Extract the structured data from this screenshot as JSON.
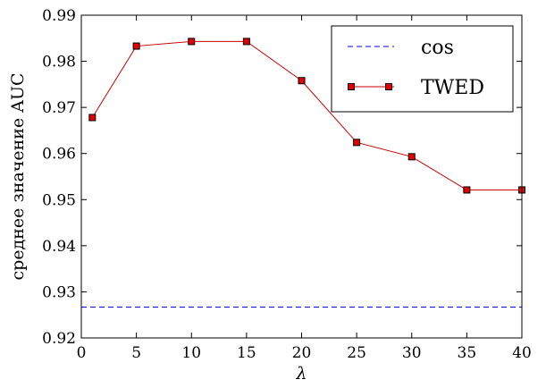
{
  "chart_data": {
    "type": "line",
    "xlabel": "λ",
    "ylabel": "среднее значение AUC",
    "xlim": [
      0,
      40
    ],
    "ylim": [
      0.92,
      0.99
    ],
    "xticks": [
      0,
      5,
      10,
      15,
      20,
      25,
      30,
      35,
      40
    ],
    "yticks": [
      0.92,
      0.93,
      0.94,
      0.95,
      0.96,
      0.97,
      0.98,
      0.99
    ],
    "grid": false,
    "legend": "top-right",
    "series": [
      {
        "name": "cos",
        "style": "dashed",
        "color": "#0000ff",
        "x": [
          0,
          40
        ],
        "y": [
          0.9267,
          0.9267
        ]
      },
      {
        "name": "TWED",
        "style": "solid-square-markers",
        "color": "#cc0000",
        "marker_fill": "#e00000",
        "x": [
          1,
          5,
          10,
          15,
          20,
          25,
          30,
          35,
          40
        ],
        "y": [
          0.9678,
          0.9833,
          0.9843,
          0.9843,
          0.9758,
          0.9624,
          0.9593,
          0.9521,
          0.9521
        ]
      }
    ]
  }
}
